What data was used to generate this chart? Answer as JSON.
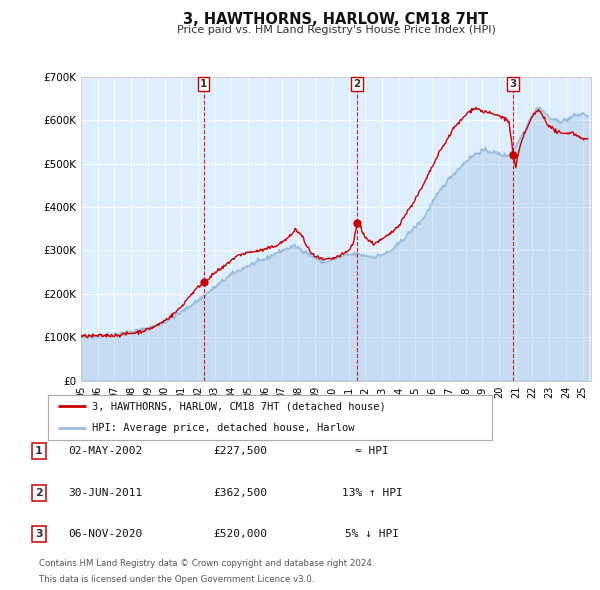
{
  "title": "3, HAWTHORNS, HARLOW, CM18 7HT",
  "subtitle": "Price paid vs. HM Land Registry's House Price Index (HPI)",
  "background_color": "#ffffff",
  "plot_bg_color": "#ddeeff",
  "grid_color": "#ffffff",
  "red_line_color": "#cc0000",
  "blue_line_color": "#99bbdd",
  "sale_marker_color": "#cc0000",
  "vline_color": "#cc0000",
  "ylim": [
    0,
    700000
  ],
  "yticks": [
    0,
    100000,
    200000,
    300000,
    400000,
    500000,
    600000,
    700000
  ],
  "ytick_labels": [
    "£0",
    "£100K",
    "£200K",
    "£300K",
    "£400K",
    "£500K",
    "£600K",
    "£700K"
  ],
  "sale_info": [
    {
      "t": 2002.33,
      "price": 227500,
      "label": "1"
    },
    {
      "t": 2011.5,
      "price": 362500,
      "label": "2"
    },
    {
      "t": 2020.85,
      "price": 520000,
      "label": "3"
    }
  ],
  "legend_line1": "3, HAWTHORNS, HARLOW, CM18 7HT (detached house)",
  "legend_line2": "HPI: Average price, detached house, Harlow",
  "table_rows": [
    {
      "num": "1",
      "date": "02-MAY-2002",
      "price": "£227,500",
      "hpi": "≈ HPI"
    },
    {
      "num": "2",
      "date": "30-JUN-2011",
      "price": "£362,500",
      "hpi": "13% ↑ HPI"
    },
    {
      "num": "3",
      "date": "06-NOV-2020",
      "price": "£520,000",
      "hpi": "5% ↓ HPI"
    }
  ],
  "footnote1": "Contains HM Land Registry data © Crown copyright and database right 2024.",
  "footnote2": "This data is licensed under the Open Government Licence v3.0.",
  "xmin": 1995.0,
  "xmax": 2025.5,
  "xtick_start": 1995,
  "xtick_end": 2025,
  "hpi_anchors": [
    [
      1995.0,
      100000
    ],
    [
      1996.0,
      103000
    ],
    [
      1997.0,
      107000
    ],
    [
      1998.0,
      112000
    ],
    [
      1999.0,
      120000
    ],
    [
      2000.0,
      135000
    ],
    [
      2001.0,
      158000
    ],
    [
      2002.0,
      185000
    ],
    [
      2002.5,
      200000
    ],
    [
      2003.0,
      215000
    ],
    [
      2004.0,
      245000
    ],
    [
      2005.0,
      265000
    ],
    [
      2006.0,
      280000
    ],
    [
      2007.0,
      300000
    ],
    [
      2007.8,
      310000
    ],
    [
      2008.5,
      295000
    ],
    [
      2009.5,
      272000
    ],
    [
      2010.0,
      278000
    ],
    [
      2010.5,
      285000
    ],
    [
      2011.0,
      290000
    ],
    [
      2011.5,
      292000
    ],
    [
      2012.0,
      288000
    ],
    [
      2012.5,
      285000
    ],
    [
      2013.0,
      290000
    ],
    [
      2013.5,
      298000
    ],
    [
      2014.0,
      315000
    ],
    [
      2014.5,
      335000
    ],
    [
      2015.0,
      355000
    ],
    [
      2015.5,
      375000
    ],
    [
      2016.0,
      410000
    ],
    [
      2016.5,
      440000
    ],
    [
      2017.0,
      465000
    ],
    [
      2017.5,
      485000
    ],
    [
      2018.0,
      505000
    ],
    [
      2018.5,
      520000
    ],
    [
      2019.0,
      530000
    ],
    [
      2019.5,
      528000
    ],
    [
      2020.0,
      522000
    ],
    [
      2020.5,
      518000
    ],
    [
      2021.0,
      540000
    ],
    [
      2021.5,
      575000
    ],
    [
      2022.0,
      615000
    ],
    [
      2022.3,
      628000
    ],
    [
      2022.5,
      625000
    ],
    [
      2022.8,
      615000
    ],
    [
      2023.0,
      605000
    ],
    [
      2023.5,
      598000
    ],
    [
      2024.0,
      600000
    ],
    [
      2024.5,
      610000
    ],
    [
      2025.0,
      615000
    ],
    [
      2025.3,
      610000
    ]
  ],
  "red_anchors": [
    [
      1995.0,
      102000
    ],
    [
      1996.0,
      103000
    ],
    [
      1997.0,
      104000
    ],
    [
      1997.5,
      106000
    ],
    [
      1998.0,
      109000
    ],
    [
      1998.5,
      112000
    ],
    [
      1999.0,
      118000
    ],
    [
      1999.5,
      126000
    ],
    [
      2000.0,
      138000
    ],
    [
      2000.5,
      152000
    ],
    [
      2001.0,
      170000
    ],
    [
      2001.5,
      195000
    ],
    [
      2002.0,
      215000
    ],
    [
      2002.33,
      227500
    ],
    [
      2002.8,
      240000
    ],
    [
      2003.0,
      248000
    ],
    [
      2003.5,
      260000
    ],
    [
      2004.0,
      278000
    ],
    [
      2004.5,
      290000
    ],
    [
      2005.0,
      295000
    ],
    [
      2005.5,
      298000
    ],
    [
      2006.0,
      302000
    ],
    [
      2006.5,
      308000
    ],
    [
      2007.0,
      318000
    ],
    [
      2007.5,
      332000
    ],
    [
      2007.8,
      348000
    ],
    [
      2008.2,
      335000
    ],
    [
      2008.5,
      308000
    ],
    [
      2009.0,
      285000
    ],
    [
      2009.5,
      278000
    ],
    [
      2010.0,
      280000
    ],
    [
      2010.5,
      288000
    ],
    [
      2011.0,
      298000
    ],
    [
      2011.3,
      318000
    ],
    [
      2011.5,
      362500
    ],
    [
      2011.7,
      355000
    ],
    [
      2012.0,
      330000
    ],
    [
      2012.3,
      320000
    ],
    [
      2012.5,
      315000
    ],
    [
      2013.0,
      325000
    ],
    [
      2013.5,
      338000
    ],
    [
      2014.0,
      358000
    ],
    [
      2014.5,
      388000
    ],
    [
      2015.0,
      418000
    ],
    [
      2015.5,
      452000
    ],
    [
      2016.0,
      492000
    ],
    [
      2016.5,
      530000
    ],
    [
      2017.0,
      562000
    ],
    [
      2017.3,
      582000
    ],
    [
      2017.7,
      598000
    ],
    [
      2018.0,
      612000
    ],
    [
      2018.3,
      622000
    ],
    [
      2018.5,
      628000
    ],
    [
      2018.8,
      625000
    ],
    [
      2019.0,
      620000
    ],
    [
      2019.3,
      618000
    ],
    [
      2019.5,
      615000
    ],
    [
      2019.8,
      612000
    ],
    [
      2020.0,
      610000
    ],
    [
      2020.3,
      605000
    ],
    [
      2020.6,
      595000
    ],
    [
      2020.85,
      520000
    ],
    [
      2021.0,
      490000
    ],
    [
      2021.2,
      530000
    ],
    [
      2021.5,
      568000
    ],
    [
      2021.8,
      592000
    ],
    [
      2022.0,
      608000
    ],
    [
      2022.2,
      618000
    ],
    [
      2022.4,
      622000
    ],
    [
      2022.6,
      612000
    ],
    [
      2022.8,
      598000
    ],
    [
      2023.0,
      585000
    ],
    [
      2023.3,
      578000
    ],
    [
      2023.5,
      572000
    ],
    [
      2023.8,
      568000
    ],
    [
      2024.0,
      570000
    ],
    [
      2024.3,
      572000
    ],
    [
      2024.5,
      568000
    ],
    [
      2024.8,
      562000
    ],
    [
      2025.0,
      558000
    ],
    [
      2025.3,
      555000
    ]
  ]
}
